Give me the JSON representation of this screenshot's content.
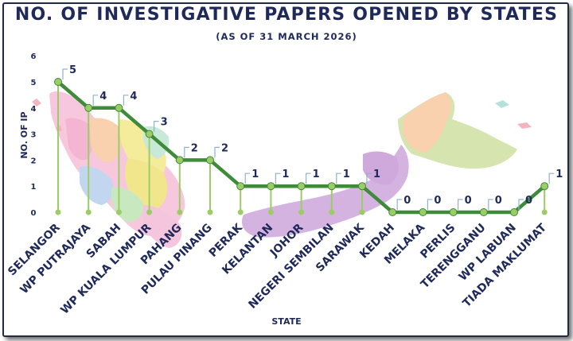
{
  "chart_data": {
    "type": "line",
    "title": "NO. OF INVESTIGATIVE PAPERS OPENED BY STATES",
    "subtitle": "(AS OF 31 MARCH 2026)",
    "xlabel": "STATE",
    "ylabel": "NO. OF IP",
    "ylim": [
      0,
      6
    ],
    "yticks": [
      "0",
      "1",
      "2",
      "3",
      "4",
      "5",
      "6"
    ],
    "categories": [
      "SELANGOR",
      "WP PUTRAJAYA",
      "SABAH",
      "WP KUALA LUMPUR",
      "PAHANG",
      "PULAU PINANG",
      "PERAK",
      "KELANTAN",
      "JOHOR",
      "NEGERI SEMBILAN",
      "SARAWAK",
      "KEDAH",
      "MELAKA",
      "PERLIS",
      "TERENGGANU",
      "WP LABUAN",
      "TIADA MAKLUMAT"
    ],
    "values": [
      5,
      4,
      4,
      3,
      2,
      2,
      1,
      1,
      1,
      1,
      1,
      0,
      0,
      0,
      0,
      0,
      1
    ],
    "value_labels": [
      "5",
      "4",
      "4",
      "3",
      "2",
      "2",
      "1",
      "1",
      "1",
      "1",
      "1",
      "0",
      "0",
      "0",
      "0",
      "0",
      "1"
    ],
    "grid": false,
    "colors": {
      "line": "#3e8b3a",
      "marker": "#9ccc65",
      "stem": "#9ccc65",
      "text": "#1f2a5a",
      "label_bracket": "#8fb3c9"
    }
  }
}
